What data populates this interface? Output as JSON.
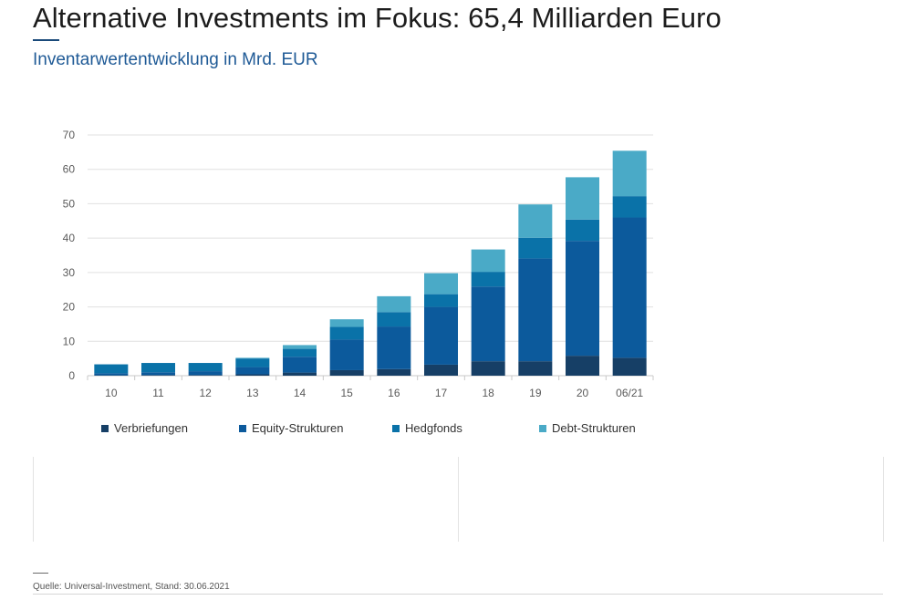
{
  "header": {
    "title": "Alternative Investments im Fokus: 65,4 Milliarden Euro",
    "subtitle": "Inventarwertentwicklung in Mrd. EUR"
  },
  "footer": {
    "source": "Quelle: Universal-Investment, Stand: 30.06.2021"
  },
  "colors": {
    "Verbriefungen": "#163f66",
    "Equity-Strukturen": "#0c5a9c",
    "Hedgfonds": "#0a72a8",
    "Debt-Strukturen": "#4aaac7",
    "grid": "#e0e0e0",
    "axis": "#c8c8c8"
  },
  "chart_data": {
    "type": "bar",
    "stacked": true,
    "title": "Inventarwertentwicklung in Mrd. EUR",
    "xlabel": "",
    "ylabel": "",
    "ylim": [
      0,
      70
    ],
    "yticks": [
      0,
      10,
      20,
      30,
      40,
      50,
      60,
      70
    ],
    "grid": true,
    "legend": "bottom",
    "categories": [
      "10",
      "11",
      "12",
      "13",
      "14",
      "15",
      "16",
      "17",
      "18",
      "19",
      "20",
      "06/21"
    ],
    "series": [
      {
        "name": "Verbriefungen",
        "values": [
          0.1,
          0.2,
          0.2,
          0.4,
          0.9,
          1.6,
          1.9,
          3.2,
          4.2,
          4.2,
          5.8,
          5.2
        ]
      },
      {
        "name": "Equity-Strukturen",
        "values": [
          0.6,
          0.8,
          1.1,
          2.1,
          4.6,
          8.9,
          12.4,
          16.8,
          21.7,
          29.9,
          33.4,
          40.8
        ]
      },
      {
        "name": "Hedgfonds",
        "values": [
          2.6,
          2.7,
          2.4,
          2.5,
          2.3,
          3.7,
          4.2,
          3.7,
          4.3,
          6.0,
          6.2,
          6.2
        ]
      },
      {
        "name": "Debt-Strukturen",
        "values": [
          0.0,
          0.0,
          0.0,
          0.2,
          1.1,
          2.2,
          4.6,
          6.1,
          6.5,
          9.7,
          12.3,
          13.2
        ]
      }
    ]
  }
}
